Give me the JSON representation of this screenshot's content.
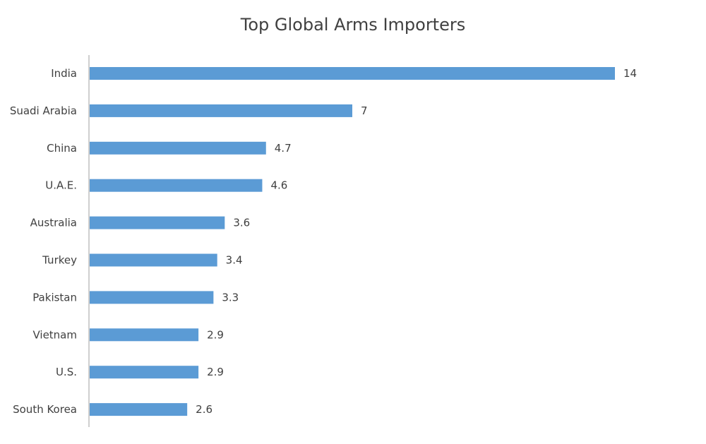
{
  "chart_data": {
    "type": "bar",
    "orientation": "horizontal",
    "title": "Top Global Arms Importers",
    "categories": [
      "India",
      "Suadi Arabia",
      "China",
      "U.A.E.",
      "Australia",
      "Turkey",
      "Pakistan",
      "Vietnam",
      "U.S.",
      "South Korea"
    ],
    "values": [
      14,
      7,
      4.7,
      4.6,
      3.6,
      3.4,
      3.3,
      2.9,
      2.9,
      2.6
    ],
    "data_labels": [
      "14",
      "7",
      "4.7",
      "4.6",
      "3.6",
      "3.4",
      "3.3",
      "2.9",
      "2.9",
      "2.6"
    ],
    "xlim": [
      0,
      14
    ],
    "grid": false,
    "legend": "none",
    "bar_color": "#5b9bd5",
    "text_color": "#404040",
    "axis_color": "#bfbfbf"
  }
}
